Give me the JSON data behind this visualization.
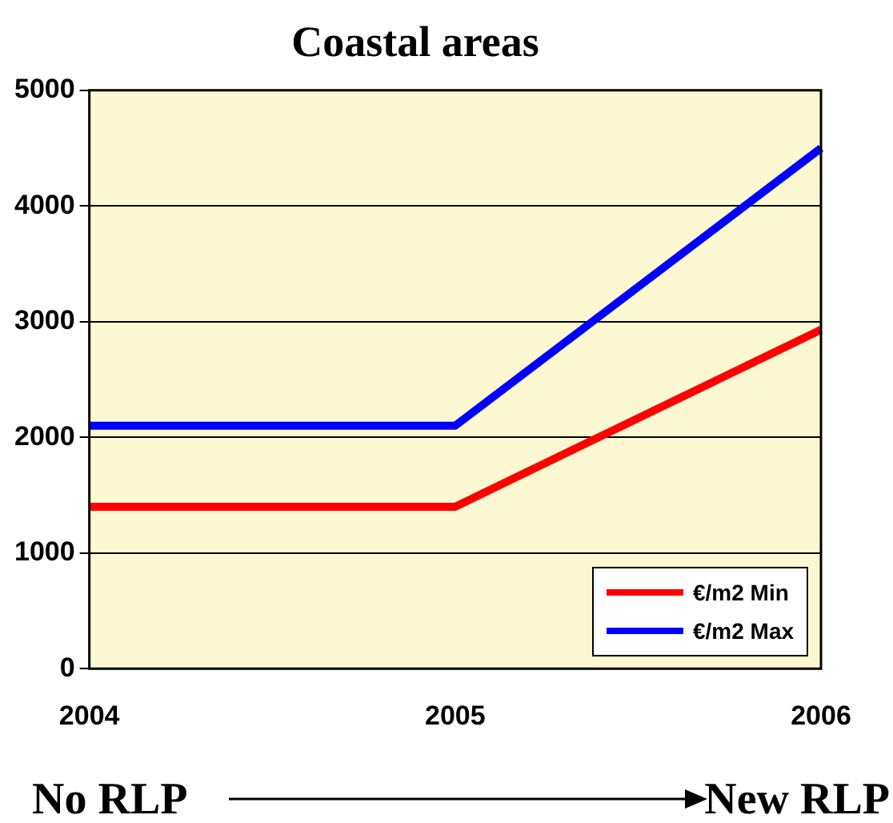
{
  "chart_data": {
    "type": "line",
    "title": "Coastal areas",
    "categories": [
      "2004",
      "2005",
      "2006"
    ],
    "series": [
      {
        "name": "€/m2 Min",
        "color": "#ff0000",
        "values": [
          1400,
          1400,
          2930
        ]
      },
      {
        "name": "€/m2 Max",
        "color": "#0000ff",
        "values": [
          2100,
          2100,
          4500
        ]
      }
    ],
    "ylim": [
      0,
      5000
    ],
    "yticks": [
      0,
      1000,
      2000,
      3000,
      4000,
      5000
    ],
    "grid": "y",
    "legend": "bottom right",
    "marker": "none",
    "line_style": "solid",
    "annotations": [
      "No RLP",
      "New RLP"
    ]
  }
}
